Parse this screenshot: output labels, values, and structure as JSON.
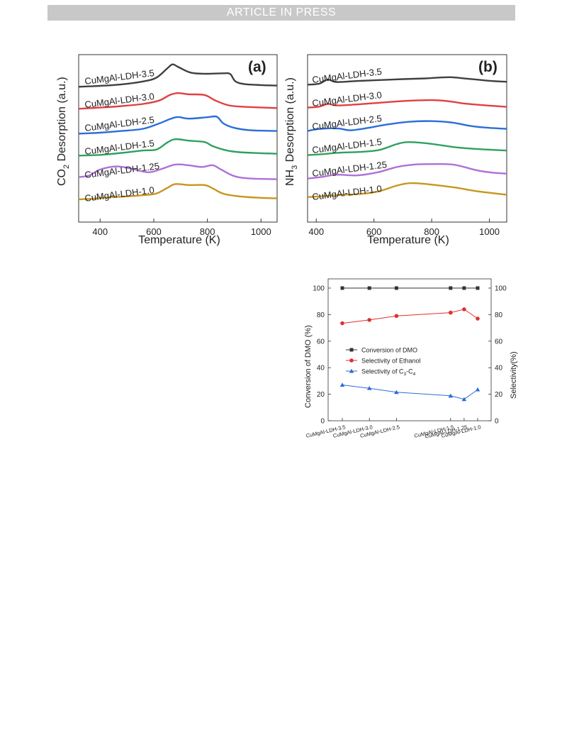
{
  "header": {
    "banner": "ARTICLE IN PRESS"
  },
  "panel_a": {
    "tag": "(a)",
    "ylabel_main": "CO",
    "ylabel_sub": "2",
    "ylabel_rest": "Desorption (a.u.)",
    "xlabel": "Temperature (K)"
  },
  "panel_b": {
    "tag": "(b)",
    "ylabel_main": "NH",
    "ylabel_sub": "3",
    "ylabel_rest": "Desorption (a.u.)",
    "xlabel": "Temperature (K)"
  },
  "panel_c": {
    "ylabel_left": "Conversion of DMO (%)",
    "ylabel_right": "Selectivity(%)",
    "legend": {
      "conversion": "Conversion of DMO",
      "ethanol": "Selectivity of Ethanol",
      "c3c4_prefix": "Selectivity of C",
      "c3c4_sub1": "3",
      "c3c4_mid": "-C",
      "c3c4_sub2": "4"
    }
  },
  "chart_data": [
    {
      "type": "line",
      "panel": "a",
      "x_range": [
        320,
        1060
      ],
      "xticks": [
        400,
        600,
        800,
        1000
      ],
      "series": [
        {
          "name": "CuMgAl-LDH-1.0",
          "color": "#c8961e",
          "points": [
            [
              320,
              0.21
            ],
            [
              370,
              0.23
            ],
            [
              430,
              0.29
            ],
            [
              500,
              0.33
            ],
            [
              560,
              0.38
            ],
            [
              610,
              0.45
            ],
            [
              650,
              0.68
            ],
            [
              680,
              0.84
            ],
            [
              730,
              0.8
            ],
            [
              790,
              0.8
            ],
            [
              820,
              0.66
            ],
            [
              860,
              0.44
            ],
            [
              920,
              0.33
            ],
            [
              1000,
              0.27
            ],
            [
              1060,
              0.25
            ]
          ]
        },
        {
          "name": "CuMgAl-LDH-1.25",
          "color": "#b070d8",
          "points": [
            [
              320,
              0.16
            ],
            [
              360,
              0.23
            ],
            [
              400,
              0.47
            ],
            [
              460,
              0.6
            ],
            [
              520,
              0.5
            ],
            [
              580,
              0.36
            ],
            [
              630,
              0.5
            ],
            [
              680,
              0.68
            ],
            [
              730,
              0.65
            ],
            [
              780,
              0.58
            ],
            [
              820,
              0.65
            ],
            [
              850,
              0.48
            ],
            [
              900,
              0.2
            ],
            [
              960,
              0.1
            ],
            [
              1060,
              0.07
            ]
          ]
        },
        {
          "name": "CuMgAl-LDH-1.5",
          "color": "#30a060",
          "points": [
            [
              320,
              0.08
            ],
            [
              400,
              0.11
            ],
            [
              480,
              0.19
            ],
            [
              560,
              0.29
            ],
            [
              610,
              0.33
            ],
            [
              650,
              0.62
            ],
            [
              680,
              0.76
            ],
            [
              730,
              0.7
            ],
            [
              790,
              0.64
            ],
            [
              820,
              0.47
            ],
            [
              870,
              0.3
            ],
            [
              920,
              0.22
            ],
            [
              1000,
              0.18
            ],
            [
              1060,
              0.16
            ]
          ]
        },
        {
          "name": "CuMgAl-LDH-2.5",
          "color": "#2a6ed8",
          "points": [
            [
              320,
              0.02
            ],
            [
              400,
              0.06
            ],
            [
              480,
              0.13
            ],
            [
              560,
              0.22
            ],
            [
              620,
              0.44
            ],
            [
              660,
              0.62
            ],
            [
              690,
              0.71
            ],
            [
              730,
              0.64
            ],
            [
              800,
              0.7
            ],
            [
              835,
              0.72
            ],
            [
              860,
              0.44
            ],
            [
              900,
              0.26
            ],
            [
              960,
              0.16
            ],
            [
              1060,
              0.13
            ]
          ]
        },
        {
          "name": "CuMgAl-LDH-3.0",
          "color": "#e04040",
          "points": [
            [
              320,
              0.08
            ],
            [
              400,
              0.13
            ],
            [
              480,
              0.19
            ],
            [
              560,
              0.28
            ],
            [
              620,
              0.42
            ],
            [
              660,
              0.65
            ],
            [
              690,
              0.73
            ],
            [
              730,
              0.68
            ],
            [
              790,
              0.65
            ],
            [
              830,
              0.42
            ],
            [
              880,
              0.22
            ],
            [
              940,
              0.16
            ],
            [
              1060,
              0.11
            ]
          ]
        },
        {
          "name": "CuMgAl-LDH-3.5",
          "color": "#404040",
          "points": [
            [
              320,
              0.02
            ],
            [
              400,
              0.06
            ],
            [
              480,
              0.12
            ],
            [
              560,
              0.24
            ],
            [
              610,
              0.4
            ],
            [
              650,
              0.78
            ],
            [
              670,
              0.95
            ],
            [
              690,
              0.85
            ],
            [
              740,
              0.6
            ],
            [
              800,
              0.56
            ],
            [
              860,
              0.58
            ],
            [
              885,
              0.55
            ],
            [
              905,
              0.24
            ],
            [
              940,
              0.13
            ],
            [
              1000,
              0.09
            ],
            [
              1060,
              0.07
            ]
          ]
        }
      ]
    },
    {
      "type": "line",
      "panel": "b",
      "x_range": [
        370,
        1060
      ],
      "xticks": [
        400,
        600,
        800,
        1000
      ],
      "series": [
        {
          "name": "CuMgAl-LDH-1.0",
          "color": "#c8961e",
          "points": [
            [
              370,
              0.24
            ],
            [
              420,
              0.28
            ],
            [
              480,
              0.33
            ],
            [
              560,
              0.38
            ],
            [
              620,
              0.49
            ],
            [
              680,
              0.72
            ],
            [
              730,
              0.82
            ],
            [
              800,
              0.76
            ],
            [
              880,
              0.64
            ],
            [
              960,
              0.48
            ],
            [
              1060,
              0.34
            ]
          ]
        },
        {
          "name": "CuMgAl-LDH-1.25",
          "color": "#b070d8",
          "points": [
            [
              370,
              0.04
            ],
            [
              420,
              0.11
            ],
            [
              470,
              0.2
            ],
            [
              540,
              0.17
            ],
            [
              610,
              0.29
            ],
            [
              680,
              0.52
            ],
            [
              740,
              0.62
            ],
            [
              820,
              0.64
            ],
            [
              880,
              0.61
            ],
            [
              950,
              0.4
            ],
            [
              1000,
              0.3
            ],
            [
              1060,
              0.24
            ]
          ]
        },
        {
          "name": "CuMgAl-LDH-1.5",
          "color": "#30a060",
          "points": [
            [
              370,
              0.04
            ],
            [
              420,
              0.08
            ],
            [
              480,
              0.14
            ],
            [
              560,
              0.18
            ],
            [
              620,
              0.26
            ],
            [
              680,
              0.5
            ],
            [
              720,
              0.58
            ],
            [
              790,
              0.52
            ],
            [
              880,
              0.37
            ],
            [
              960,
              0.29
            ],
            [
              1060,
              0.23
            ]
          ]
        },
        {
          "name": "CuMgAl-LDH-2.5",
          "color": "#2a6ed8",
          "points": [
            [
              370,
              0.07
            ],
            [
              400,
              0.14
            ],
            [
              440,
              0.18
            ],
            [
              480,
              0.17
            ],
            [
              520,
              0.1
            ],
            [
              580,
              0.2
            ],
            [
              640,
              0.33
            ],
            [
              720,
              0.45
            ],
            [
              800,
              0.48
            ],
            [
              870,
              0.42
            ],
            [
              940,
              0.27
            ],
            [
              1000,
              0.2
            ],
            [
              1060,
              0.16
            ]
          ]
        },
        {
          "name": "CuMgAl-LDH-3.0",
          "color": "#e04040",
          "points": [
            [
              370,
              0.07
            ],
            [
              410,
              0.11
            ],
            [
              440,
              0.22
            ],
            [
              470,
              0.16
            ],
            [
              540,
              0.2
            ],
            [
              620,
              0.27
            ],
            [
              700,
              0.34
            ],
            [
              800,
              0.38
            ],
            [
              860,
              0.33
            ],
            [
              920,
              0.23
            ],
            [
              1000,
              0.15
            ],
            [
              1060,
              0.1
            ]
          ]
        },
        {
          "name": "CuMgAl-LDH-3.5",
          "color": "#404040",
          "points": [
            [
              370,
              0.05
            ],
            [
              410,
              0.09
            ],
            [
              440,
              0.26
            ],
            [
              470,
              0.16
            ],
            [
              540,
              0.2
            ],
            [
              620,
              0.24
            ],
            [
              700,
              0.28
            ],
            [
              780,
              0.31
            ],
            [
              860,
              0.36
            ],
            [
              920,
              0.3
            ],
            [
              1000,
              0.21
            ],
            [
              1060,
              0.17
            ]
          ]
        }
      ]
    },
    {
      "type": "line",
      "panel": "c",
      "categories": [
        "CuMgAl-LDH-3.5",
        "CuMgAl-LDH-3.0",
        "CuMgAl-LDH-2.5",
        "CuMgAl-LDH-1.5",
        "CuMgAl-LDH-1.25",
        "CuMgAl-LDH-1.0"
      ],
      "x_index": [
        0,
        1,
        2,
        4,
        4.5,
        5
      ],
      "ylim": [
        0,
        100
      ],
      "yticks": [
        0,
        20,
        40,
        60,
        80,
        100
      ],
      "series": [
        {
          "name": "Conversion of DMO",
          "color": "#333333",
          "marker": "square",
          "values": [
            100,
            100,
            100,
            100,
            100,
            100
          ]
        },
        {
          "name": "Selectivity of Ethanol",
          "color": "#e03030",
          "marker": "circle",
          "values": [
            73.5,
            76,
            79,
            81.5,
            84,
            77
          ]
        },
        {
          "name": "Selectivity of C3-C4",
          "color": "#2a6ed8",
          "marker": "triangle",
          "values": [
            27,
            24.5,
            21.5,
            18.8,
            16.2,
            23.5
          ]
        }
      ]
    }
  ]
}
